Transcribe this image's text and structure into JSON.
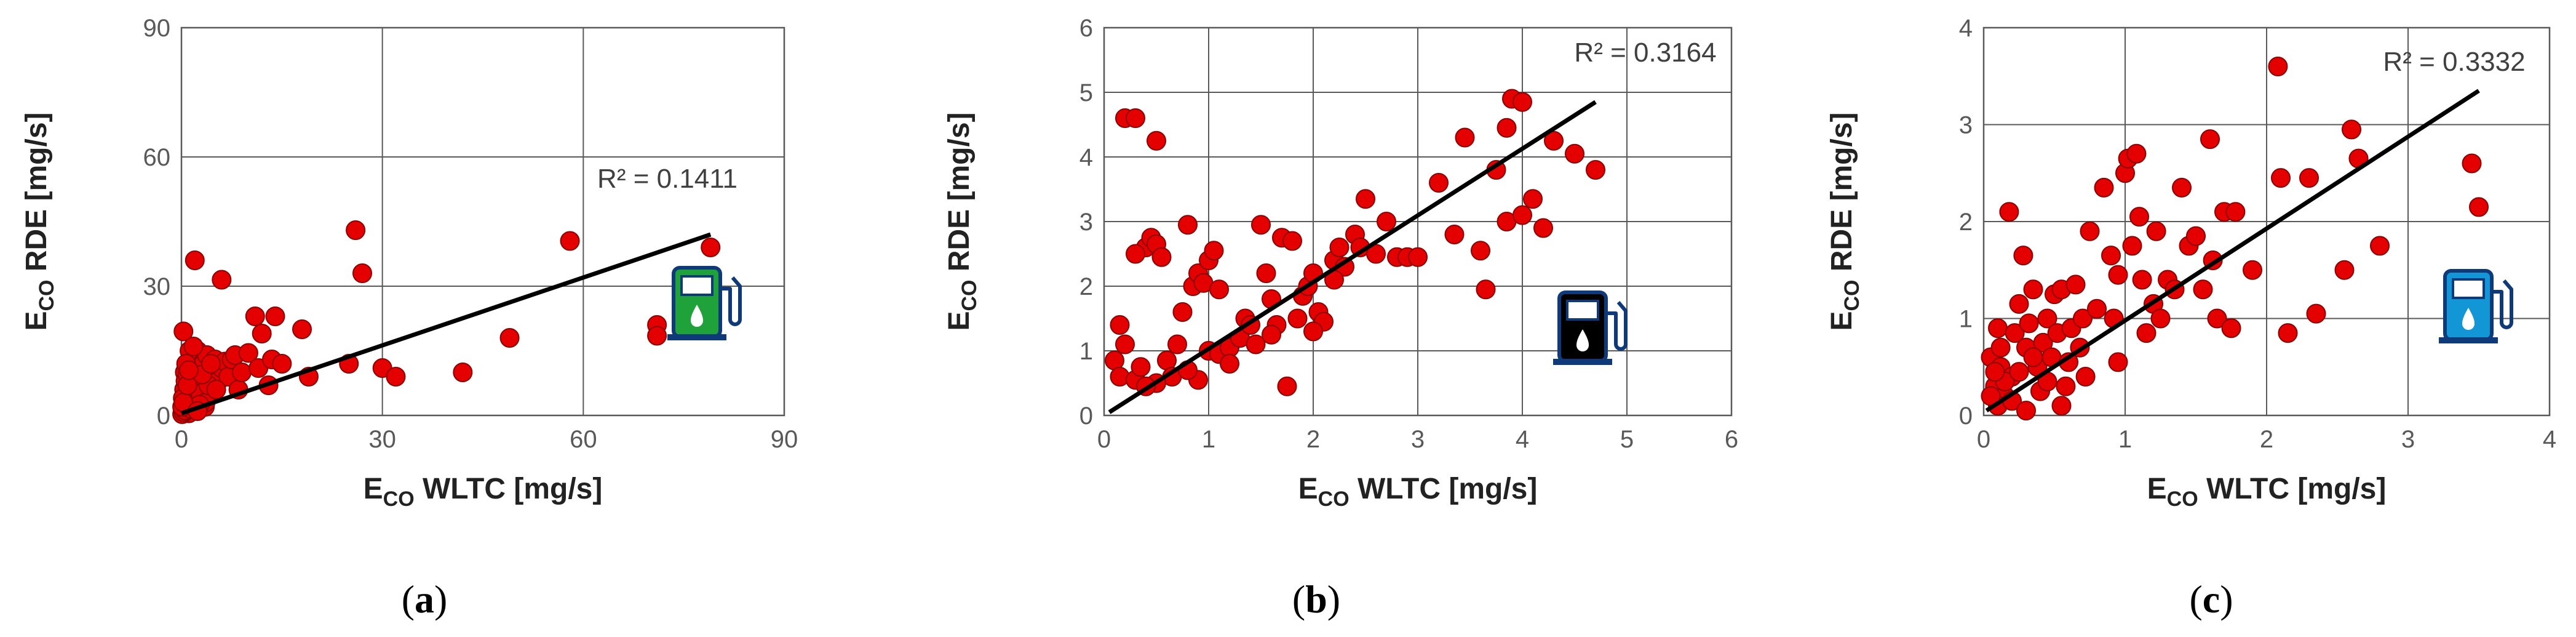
{
  "colors": {
    "point": "#e50000",
    "point_stroke": "#8b0000",
    "trend": "#000000",
    "grid": "#595959",
    "pump_green": "#1fa23a",
    "pump_black": "#000000",
    "pump_blue": "#1296d6",
    "pump_outline": "#0e3a7a"
  },
  "chart_data": [
    {
      "type": "scatter",
      "panel_label": "(a)",
      "label_open": "(",
      "label_letter": "a",
      "label_close": ")",
      "icon": "fuel-pump-green-icon",
      "xlabel": {
        "main": "E",
        "sub": "CO",
        "rest": " WLTC [mg/s]"
      },
      "ylabel": {
        "main": "E",
        "sub": "CO",
        "rest": " RDE [mg/s]"
      },
      "xlim": [
        0,
        90
      ],
      "ylim": [
        0,
        90
      ],
      "xticks": [
        0,
        30,
        60,
        90
      ],
      "yticks": [
        0,
        30,
        60,
        90
      ],
      "r2_text": "R² = 0.1411",
      "trendline": {
        "x0": 0,
        "y0": 0.5,
        "x1": 79,
        "y1": 42
      },
      "points": [
        [
          0.3,
          19.5
        ],
        [
          0.5,
          10
        ],
        [
          0.8,
          6
        ],
        [
          1,
          3
        ],
        [
          1.2,
          12
        ],
        [
          1.5,
          8
        ],
        [
          0.2,
          1.5
        ],
        [
          0.4,
          2.5
        ],
        [
          0.6,
          4
        ],
        [
          0.9,
          1
        ],
        [
          1.1,
          0.5
        ],
        [
          1.4,
          5
        ],
        [
          1.7,
          2
        ],
        [
          2,
          7
        ],
        [
          2.2,
          3.5
        ],
        [
          2.5,
          9
        ],
        [
          2.8,
          4.5
        ],
        [
          3,
          11
        ],
        [
          3.2,
          6.5
        ],
        [
          3.5,
          2
        ],
        [
          0.1,
          0.3
        ],
        [
          0.3,
          0.8
        ],
        [
          0.5,
          1.2
        ],
        [
          0.7,
          2
        ],
        [
          0.8,
          3.5
        ],
        [
          1,
          5.5
        ],
        [
          1.3,
          7
        ],
        [
          1.6,
          9
        ],
        [
          1.9,
          11
        ],
        [
          2.1,
          13
        ],
        [
          2.4,
          15
        ],
        [
          2.6,
          6
        ],
        [
          2.9,
          8
        ],
        [
          3.3,
          12
        ],
        [
          3.8,
          14
        ],
        [
          4.2,
          5
        ],
        [
          4.6,
          10
        ],
        [
          5,
          13
        ],
        [
          5.5,
          8
        ],
        [
          6,
          11
        ],
        [
          6.5,
          12.5
        ],
        [
          7,
          9
        ],
        [
          7.5,
          13
        ],
        [
          8,
          14
        ],
        [
          8.5,
          6
        ],
        [
          9,
          10
        ],
        [
          10,
          14.5
        ],
        [
          11,
          23
        ],
        [
          11.5,
          11
        ],
        [
          12,
          19
        ],
        [
          13,
          7
        ],
        [
          13.5,
          13
        ],
        [
          14,
          23
        ],
        [
          15,
          12
        ],
        [
          18,
          20
        ],
        [
          19,
          9
        ],
        [
          25,
          12
        ],
        [
          26,
          43
        ],
        [
          27,
          33
        ],
        [
          2,
          36
        ],
        [
          6,
          31.5
        ],
        [
          30,
          11
        ],
        [
          32,
          9
        ],
        [
          42,
          10
        ],
        [
          49,
          18
        ],
        [
          58,
          40.5
        ],
        [
          71,
          21
        ],
        [
          71,
          18.5
        ],
        [
          79,
          39
        ],
        [
          0.4,
          6
        ],
        [
          0.6,
          8
        ],
        [
          0.9,
          9.5
        ],
        [
          1.2,
          15
        ],
        [
          1.8,
          4
        ],
        [
          2.3,
          5
        ],
        [
          3.6,
          3
        ],
        [
          4,
          7
        ],
        [
          0.2,
          4
        ],
        [
          0.7,
          12
        ],
        [
          1.5,
          1.5
        ],
        [
          2.7,
          2.5
        ],
        [
          3.1,
          9.5
        ],
        [
          0.1,
          2
        ],
        [
          0.3,
          3
        ],
        [
          1.8,
          16
        ],
        [
          2.4,
          1
        ],
        [
          0.9,
          7
        ],
        [
          4.4,
          12
        ],
        [
          5.2,
          6
        ],
        [
          1.1,
          10.5
        ]
      ]
    },
    {
      "type": "scatter",
      "panel_label": "(b)",
      "label_open": "(",
      "label_letter": "b",
      "label_close": ")",
      "icon": "fuel-pump-black-icon",
      "xlabel": {
        "main": "E",
        "sub": "CO",
        "rest": " WLTC [mg/s]"
      },
      "ylabel": {
        "main": "E",
        "sub": "CO",
        "rest": " RDE [mg/s]"
      },
      "xlim": [
        0,
        6
      ],
      "ylim": [
        0,
        6
      ],
      "xticks": [
        0,
        1,
        2,
        3,
        4,
        5,
        6
      ],
      "yticks": [
        0,
        1,
        2,
        3,
        4,
        5,
        6
      ],
      "r2_text": "R² = 0.3164",
      "trendline": {
        "x0": 0.05,
        "y0": 0.05,
        "x1": 4.7,
        "y1": 4.85
      },
      "points": [
        [
          0.2,
          4.6
        ],
        [
          0.3,
          4.6
        ],
        [
          0.5,
          4.25
        ],
        [
          0.15,
          1.4
        ],
        [
          0.2,
          1.1
        ],
        [
          0.1,
          0.85
        ],
        [
          0.15,
          0.6
        ],
        [
          0.3,
          0.55
        ],
        [
          0.35,
          0.75
        ],
        [
          0.4,
          2.6
        ],
        [
          0.45,
          2.75
        ],
        [
          0.5,
          2.65
        ],
        [
          0.55,
          2.45
        ],
        [
          0.3,
          2.5
        ],
        [
          0.6,
          0.85
        ],
        [
          0.65,
          0.6
        ],
        [
          0.7,
          1.1
        ],
        [
          0.75,
          1.6
        ],
        [
          0.8,
          2.95
        ],
        [
          0.85,
          2.0
        ],
        [
          0.9,
          2.2
        ],
        [
          0.95,
          2.05
        ],
        [
          1.0,
          2.4
        ],
        [
          1.05,
          2.55
        ],
        [
          1.1,
          1.95
        ],
        [
          1.0,
          1.0
        ],
        [
          1.1,
          0.95
        ],
        [
          1.2,
          1.05
        ],
        [
          1.3,
          1.2
        ],
        [
          1.35,
          1.5
        ],
        [
          1.4,
          1.4
        ],
        [
          1.5,
          2.95
        ],
        [
          1.55,
          2.2
        ],
        [
          1.6,
          1.8
        ],
        [
          1.65,
          1.4
        ],
        [
          1.7,
          2.75
        ],
        [
          1.8,
          2.7
        ],
        [
          1.85,
          1.5
        ],
        [
          1.9,
          1.85
        ],
        [
          1.95,
          2.0
        ],
        [
          2.0,
          2.2
        ],
        [
          2.05,
          1.6
        ],
        [
          2.1,
          1.45
        ],
        [
          2.2,
          2.4
        ],
        [
          2.25,
          2.6
        ],
        [
          2.3,
          2.3
        ],
        [
          2.4,
          2.8
        ],
        [
          2.45,
          2.6
        ],
        [
          2.5,
          3.35
        ],
        [
          2.6,
          2.5
        ],
        [
          2.7,
          3.0
        ],
        [
          2.8,
          2.45
        ],
        [
          2.9,
          2.45
        ],
        [
          3.0,
          2.45
        ],
        [
          3.2,
          3.6
        ],
        [
          3.35,
          2.8
        ],
        [
          3.6,
          2.55
        ],
        [
          3.65,
          1.95
        ],
        [
          3.75,
          3.8
        ],
        [
          3.85,
          4.45
        ],
        [
          3.9,
          4.9
        ],
        [
          4.0,
          4.85
        ],
        [
          4.1,
          3.35
        ],
        [
          4.2,
          2.9
        ],
        [
          4.3,
          4.25
        ],
        [
          4.5,
          4.05
        ],
        [
          4.7,
          3.8
        ],
        [
          3.85,
          3.0
        ],
        [
          4.0,
          3.1
        ],
        [
          1.75,
          0.45
        ],
        [
          0.9,
          0.55
        ],
        [
          1.2,
          0.8
        ],
        [
          0.5,
          0.5
        ],
        [
          0.4,
          0.45
        ],
        [
          0.8,
          0.7
        ],
        [
          1.45,
          1.1
        ],
        [
          1.6,
          1.25
        ],
        [
          2.0,
          1.3
        ],
        [
          2.2,
          2.1
        ],
        [
          3.45,
          4.3
        ]
      ]
    },
    {
      "type": "scatter",
      "panel_label": "(c)",
      "label_open": "(",
      "label_letter": "c",
      "label_close": ")",
      "icon": "fuel-pump-blue-icon",
      "xlabel": {
        "main": "E",
        "sub": "CO",
        "rest": " WLTC [mg/s]"
      },
      "ylabel": {
        "main": "E",
        "sub": "CO",
        "rest": " RDE [mg/s]"
      },
      "xlim": [
        0,
        4
      ],
      "ylim": [
        0,
        4
      ],
      "xticks": [
        0,
        1,
        2,
        3,
        4
      ],
      "yticks": [
        0,
        1,
        2,
        3,
        4
      ],
      "r2_text": "R² = 0.3332",
      "trendline": {
        "x0": 0.02,
        "y0": 0.05,
        "x1": 3.5,
        "y1": 3.35
      },
      "points": [
        [
          0.05,
          0.6
        ],
        [
          0.08,
          0.3
        ],
        [
          0.1,
          0.9
        ],
        [
          0.12,
          0.5
        ],
        [
          0.15,
          0.2
        ],
        [
          0.18,
          2.1
        ],
        [
          0.2,
          0.4
        ],
        [
          0.22,
          0.85
        ],
        [
          0.25,
          1.15
        ],
        [
          0.28,
          1.65
        ],
        [
          0.3,
          0.7
        ],
        [
          0.32,
          0.95
        ],
        [
          0.35,
          1.3
        ],
        [
          0.38,
          0.5
        ],
        [
          0.4,
          0.25
        ],
        [
          0.42,
          0.75
        ],
        [
          0.45,
          1.0
        ],
        [
          0.48,
          0.6
        ],
        [
          0.5,
          1.25
        ],
        [
          0.52,
          0.85
        ],
        [
          0.55,
          1.3
        ],
        [
          0.58,
          0.3
        ],
        [
          0.6,
          0.55
        ],
        [
          0.62,
          0.9
        ],
        [
          0.65,
          1.35
        ],
        [
          0.68,
          0.7
        ],
        [
          0.7,
          1.0
        ],
        [
          0.75,
          1.9
        ],
        [
          0.8,
          1.1
        ],
        [
          0.85,
          2.35
        ],
        [
          0.9,
          1.65
        ],
        [
          0.92,
          1.0
        ],
        [
          0.95,
          1.45
        ],
        [
          1.0,
          2.5
        ],
        [
          1.02,
          2.65
        ],
        [
          1.05,
          1.75
        ],
        [
          1.08,
          2.7
        ],
        [
          1.1,
          2.05
        ],
        [
          1.12,
          1.4
        ],
        [
          1.15,
          0.85
        ],
        [
          1.2,
          1.15
        ],
        [
          1.22,
          1.9
        ],
        [
          1.3,
          1.4
        ],
        [
          1.35,
          1.3
        ],
        [
          1.4,
          2.35
        ],
        [
          1.45,
          1.75
        ],
        [
          1.5,
          1.85
        ],
        [
          1.6,
          2.85
        ],
        [
          1.62,
          1.6
        ],
        [
          1.65,
          1.0
        ],
        [
          1.7,
          2.1
        ],
        [
          1.75,
          0.9
        ],
        [
          1.78,
          2.1
        ],
        [
          1.9,
          1.5
        ],
        [
          2.08,
          3.6
        ],
        [
          2.1,
          2.45
        ],
        [
          2.15,
          0.85
        ],
        [
          2.3,
          2.45
        ],
        [
          2.35,
          1.05
        ],
        [
          2.55,
          1.5
        ],
        [
          2.6,
          2.95
        ],
        [
          2.65,
          2.65
        ],
        [
          2.8,
          1.75
        ],
        [
          3.45,
          2.6
        ],
        [
          3.5,
          2.15
        ],
        [
          0.1,
          0.1
        ],
        [
          0.15,
          0.35
        ],
        [
          0.2,
          0.15
        ],
        [
          0.3,
          0.05
        ],
        [
          0.12,
          0.7
        ],
        [
          0.05,
          0.2
        ],
        [
          0.25,
          0.45
        ],
        [
          0.45,
          0.35
        ],
        [
          0.55,
          0.1
        ],
        [
          0.08,
          0.45
        ],
        [
          0.35,
          0.6
        ],
        [
          1.25,
          1.0
        ],
        [
          0.72,
          0.4
        ],
        [
          1.55,
          1.3
        ],
        [
          0.95,
          0.55
        ]
      ]
    }
  ]
}
